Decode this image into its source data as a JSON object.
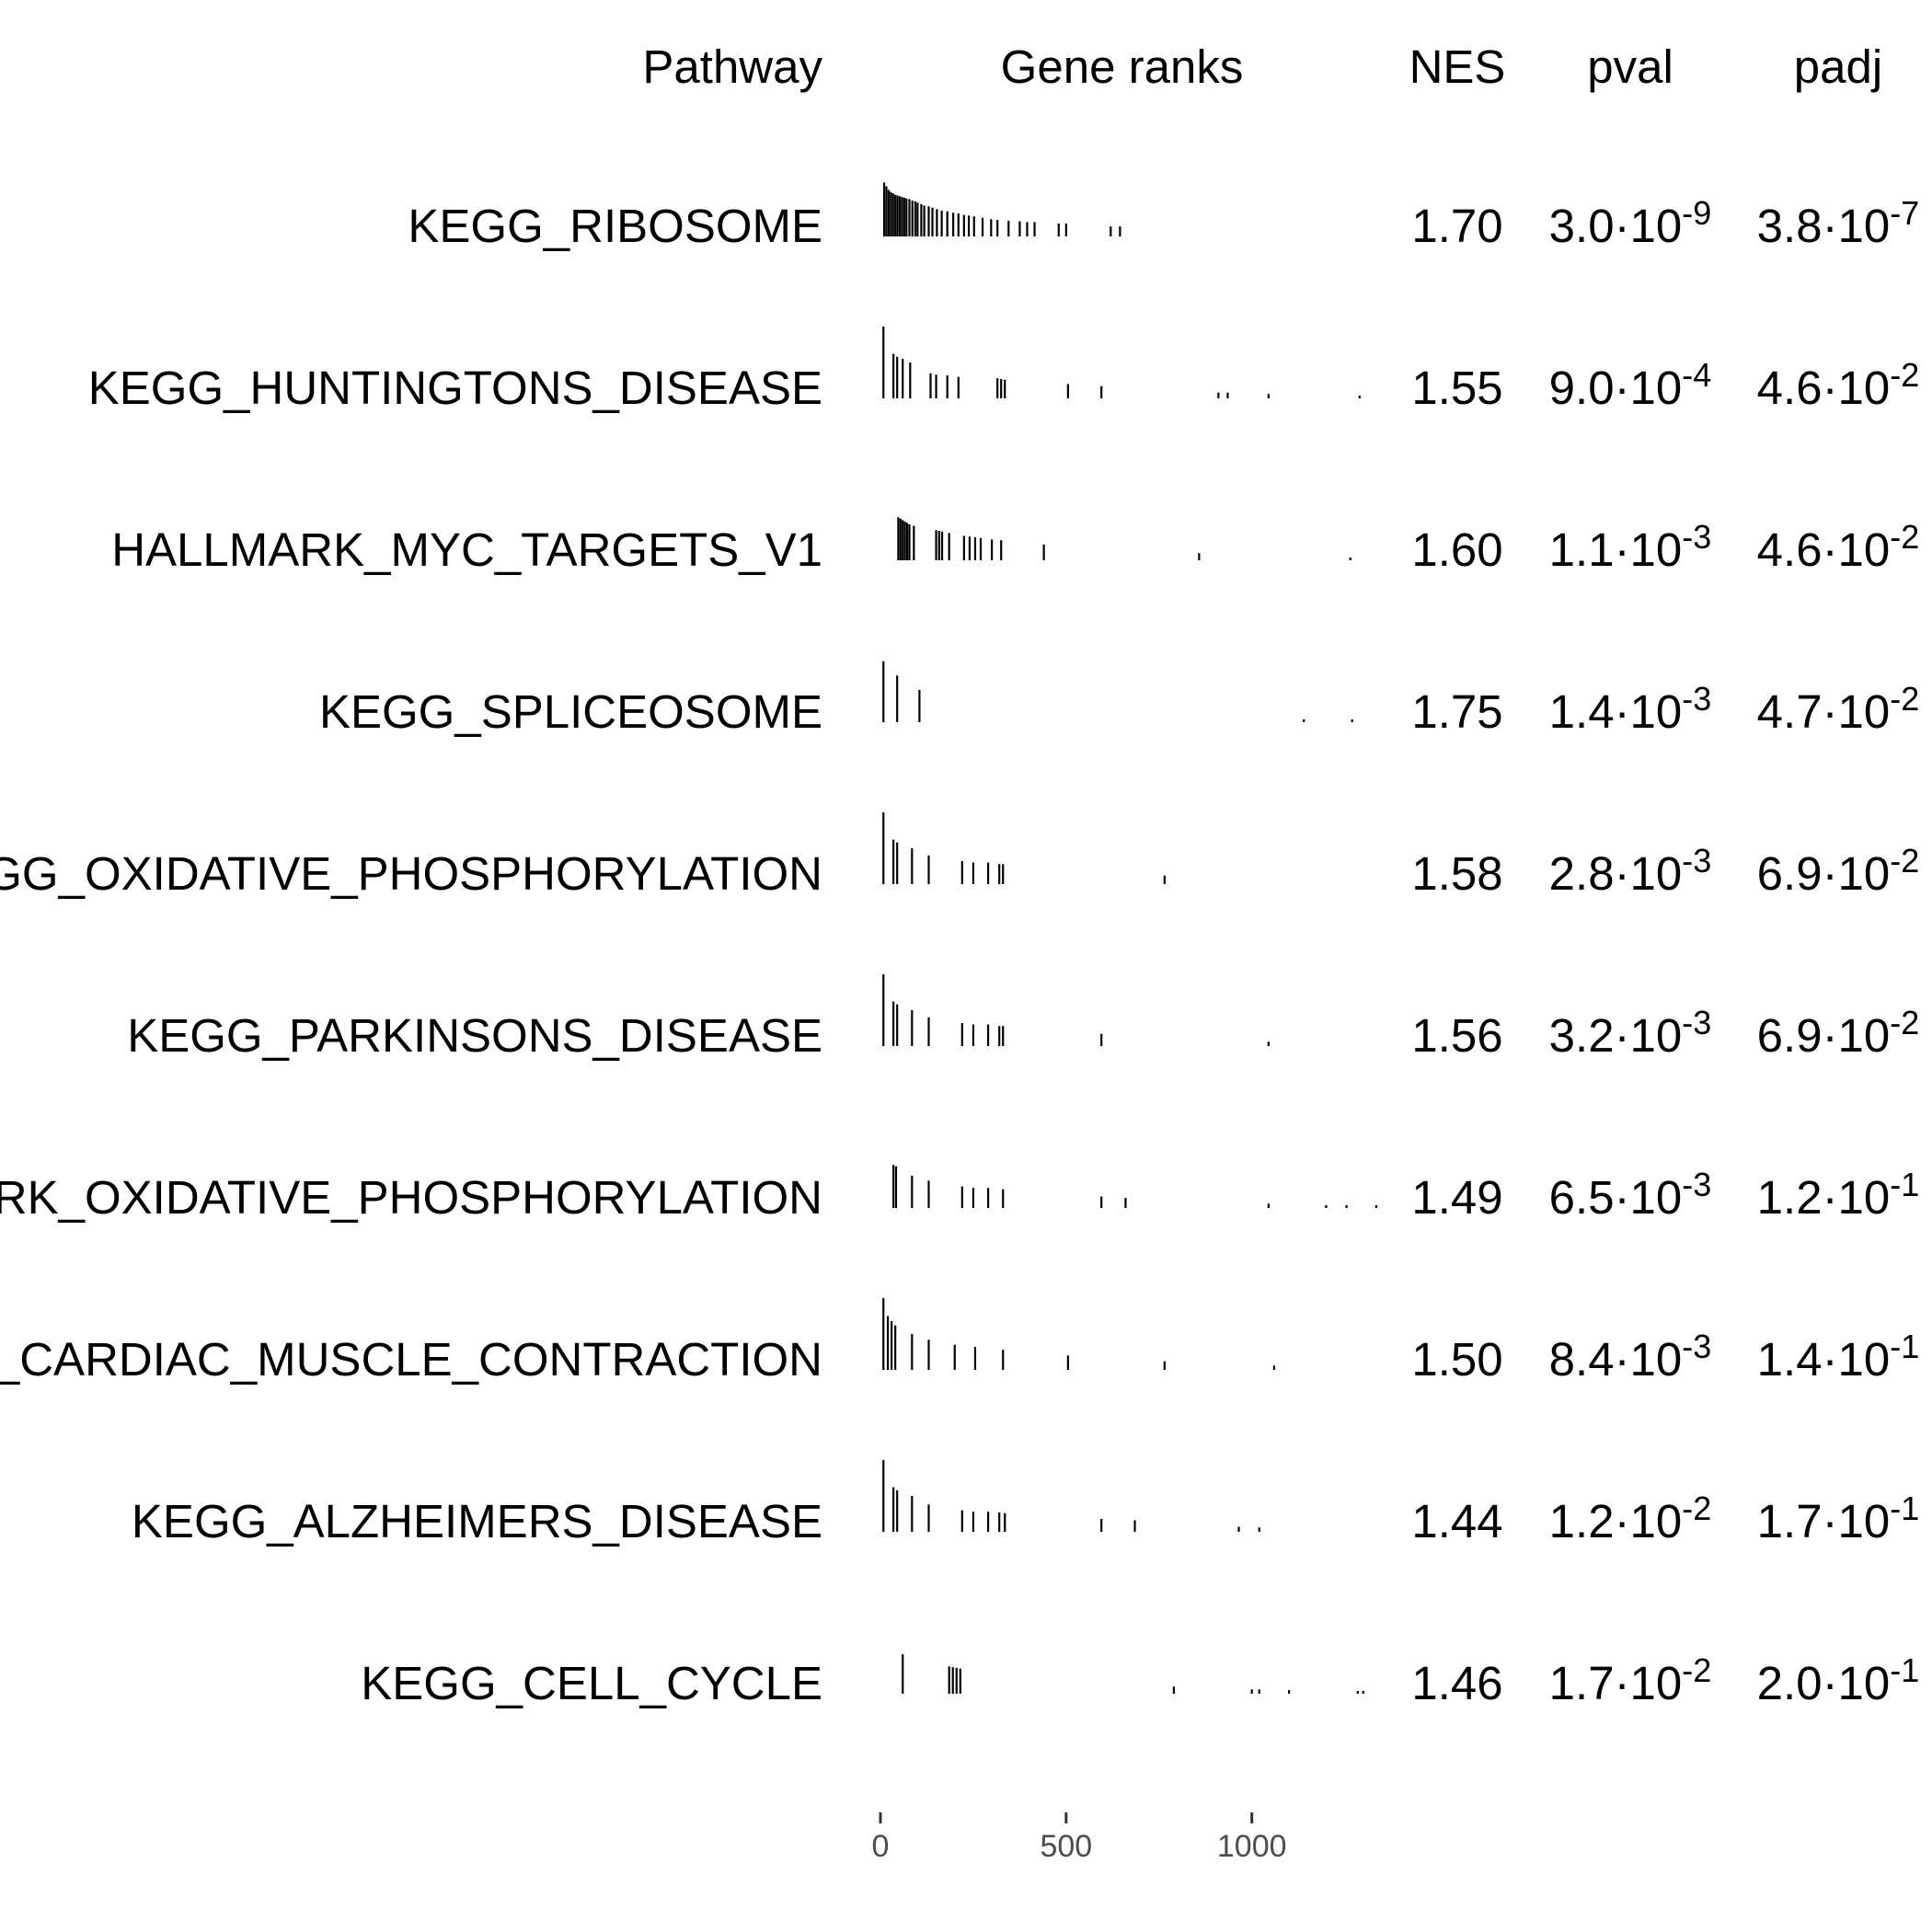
{
  "chart_data": {
    "type": "table",
    "columns": [
      "Pathway",
      "Gene ranks",
      "NES",
      "pval",
      "padj"
    ],
    "x_axis": {
      "ticks": [
        0,
        500,
        1000
      ],
      "range": [
        0,
        1350
      ]
    },
    "rows": [
      {
        "pathway": "KEGG_RIBOSOME",
        "nes": "1.70",
        "pval": {
          "mantissa": "3.0",
          "exponent": "-9"
        },
        "padj": {
          "mantissa": "3.8",
          "exponent": "-7"
        },
        "ranks": [
          [
            10,
            0.75
          ],
          [
            16,
            0.7
          ],
          [
            22,
            0.65
          ],
          [
            28,
            0.62
          ],
          [
            34,
            0.6
          ],
          [
            40,
            0.58
          ],
          [
            46,
            0.57
          ],
          [
            52,
            0.56
          ],
          [
            58,
            0.55
          ],
          [
            64,
            0.54
          ],
          [
            70,
            0.53
          ],
          [
            78,
            0.52
          ],
          [
            86,
            0.5
          ],
          [
            94,
            0.49
          ],
          [
            100,
            0.47
          ],
          [
            110,
            0.45
          ],
          [
            118,
            0.43
          ],
          [
            130,
            0.42
          ],
          [
            140,
            0.4
          ],
          [
            152,
            0.38
          ],
          [
            165,
            0.36
          ],
          [
            180,
            0.35
          ],
          [
            196,
            0.33
          ],
          [
            210,
            0.32
          ],
          [
            225,
            0.3
          ],
          [
            238,
            0.29
          ],
          [
            252,
            0.28
          ],
          [
            275,
            0.26
          ],
          [
            298,
            0.24
          ],
          [
            315,
            0.23
          ],
          [
            345,
            0.22
          ],
          [
            375,
            0.21
          ],
          [
            395,
            0.2
          ],
          [
            415,
            0.2
          ],
          [
            480,
            0.18
          ],
          [
            500,
            0.18
          ],
          [
            620,
            0.14
          ],
          [
            645,
            0.14
          ]
        ]
      },
      {
        "pathway": "KEGG_HUNTINGTONS_DISEASE",
        "nes": "1.55",
        "pval": {
          "mantissa": "9.0",
          "exponent": "-4"
        },
        "padj": {
          "mantissa": "4.6",
          "exponent": "-2"
        },
        "ranks": [
          [
            8,
            1.0
          ],
          [
            35,
            0.62
          ],
          [
            45,
            0.58
          ],
          [
            60,
            0.55
          ],
          [
            80,
            0.5
          ],
          [
            135,
            0.35
          ],
          [
            150,
            0.33
          ],
          [
            180,
            0.32
          ],
          [
            210,
            0.3
          ],
          [
            315,
            0.28
          ],
          [
            325,
            0.27
          ],
          [
            335,
            0.26
          ],
          [
            505,
            0.2
          ],
          [
            595,
            0.17
          ],
          [
            910,
            0.08
          ],
          [
            935,
            0.08
          ],
          [
            1045,
            0.06
          ],
          [
            1290,
            0.02
          ]
        ]
      },
      {
        "pathway": "HALLMARK_MYC_TARGETS_V1",
        "nes": "1.60",
        "pval": {
          "mantissa": "1.1",
          "exponent": "-3"
        },
        "padj": {
          "mantissa": "4.6",
          "exponent": "-2"
        },
        "ranks": [
          [
            48,
            0.6
          ],
          [
            54,
            0.58
          ],
          [
            60,
            0.56
          ],
          [
            66,
            0.54
          ],
          [
            72,
            0.52
          ],
          [
            78,
            0.5
          ],
          [
            90,
            0.48
          ],
          [
            150,
            0.42
          ],
          [
            158,
            0.41
          ],
          [
            166,
            0.4
          ],
          [
            185,
            0.38
          ],
          [
            225,
            0.34
          ],
          [
            240,
            0.33
          ],
          [
            255,
            0.32
          ],
          [
            270,
            0.31
          ],
          [
            300,
            0.29
          ],
          [
            325,
            0.28
          ],
          [
            440,
            0.22
          ],
          [
            858,
            0.1
          ],
          [
            1265,
            0.02
          ]
        ]
      },
      {
        "pathway": "KEGG_SPLICEOSOME",
        "nes": "1.75",
        "pval": {
          "mantissa": "1.4",
          "exponent": "-3"
        },
        "padj": {
          "mantissa": "4.7",
          "exponent": "-2"
        },
        "ranks": [
          [
            8,
            0.85
          ],
          [
            45,
            0.65
          ],
          [
            105,
            0.45
          ],
          [
            1140,
            0.04
          ],
          [
            1270,
            0.02
          ]
        ]
      },
      {
        "pathway": "KEGG_OXIDATIVE_PHOSPHORYLATION",
        "nes": "1.58",
        "pval": {
          "mantissa": "2.8",
          "exponent": "-3"
        },
        "padj": {
          "mantissa": "6.9",
          "exponent": "-2"
        },
        "ranks": [
          [
            8,
            1.0
          ],
          [
            35,
            0.62
          ],
          [
            45,
            0.58
          ],
          [
            85,
            0.5
          ],
          [
            130,
            0.4
          ],
          [
            220,
            0.32
          ],
          [
            250,
            0.3
          ],
          [
            290,
            0.3
          ],
          [
            320,
            0.28
          ],
          [
            330,
            0.28
          ],
          [
            765,
            0.12
          ]
        ]
      },
      {
        "pathway": "KEGG_PARKINSONS_DISEASE",
        "nes": "1.56",
        "pval": {
          "mantissa": "3.2",
          "exponent": "-3"
        },
        "padj": {
          "mantissa": "6.9",
          "exponent": "-2"
        },
        "ranks": [
          [
            8,
            1.0
          ],
          [
            35,
            0.62
          ],
          [
            45,
            0.58
          ],
          [
            85,
            0.5
          ],
          [
            130,
            0.4
          ],
          [
            220,
            0.32
          ],
          [
            250,
            0.3
          ],
          [
            290,
            0.3
          ],
          [
            320,
            0.28
          ],
          [
            330,
            0.28
          ],
          [
            595,
            0.17
          ],
          [
            1045,
            0.06
          ]
        ]
      },
      {
        "pathway": "HALLMARK_OXIDATIVE_PHOSPHORYLATION",
        "nes": "1.49",
        "pval": {
          "mantissa": "6.5",
          "exponent": "-3"
        },
        "padj": {
          "mantissa": "1.2",
          "exponent": "-1"
        },
        "ranks": [
          [
            35,
            0.6
          ],
          [
            42,
            0.58
          ],
          [
            85,
            0.45
          ],
          [
            130,
            0.38
          ],
          [
            220,
            0.3
          ],
          [
            250,
            0.28
          ],
          [
            290,
            0.28
          ],
          [
            330,
            0.26
          ],
          [
            595,
            0.16
          ],
          [
            660,
            0.14
          ],
          [
            1045,
            0.06
          ],
          [
            1200,
            0.03
          ],
          [
            1255,
            0.02
          ],
          [
            1335,
            0.02
          ]
        ]
      },
      {
        "pathway": "KEGG_CARDIAC_MUSCLE_CONTRACTION",
        "nes": "1.50",
        "pval": {
          "mantissa": "8.4",
          "exponent": "-3"
        },
        "padj": {
          "mantissa": "1.4",
          "exponent": "-1"
        },
        "ranks": [
          [
            8,
            1.0
          ],
          [
            20,
            0.75
          ],
          [
            30,
            0.68
          ],
          [
            40,
            0.62
          ],
          [
            85,
            0.5
          ],
          [
            130,
            0.42
          ],
          [
            200,
            0.35
          ],
          [
            255,
            0.32
          ],
          [
            330,
            0.28
          ],
          [
            505,
            0.2
          ],
          [
            765,
            0.12
          ],
          [
            1060,
            0.06
          ]
        ]
      },
      {
        "pathway": "KEGG_ALZHEIMERS_DISEASE",
        "nes": "1.44",
        "pval": {
          "mantissa": "1.2",
          "exponent": "-2"
        },
        "padj": {
          "mantissa": "1.7",
          "exponent": "-1"
        },
        "ranks": [
          [
            8,
            1.0
          ],
          [
            35,
            0.62
          ],
          [
            45,
            0.58
          ],
          [
            85,
            0.5
          ],
          [
            130,
            0.38
          ],
          [
            220,
            0.3
          ],
          [
            250,
            0.28
          ],
          [
            290,
            0.28
          ],
          [
            320,
            0.27
          ],
          [
            335,
            0.26
          ],
          [
            595,
            0.18
          ],
          [
            685,
            0.16
          ],
          [
            965,
            0.07
          ],
          [
            1020,
            0.06
          ]
        ]
      },
      {
        "pathway": "KEGG_CELL_CYCLE",
        "nes": "1.46",
        "pval": {
          "mantissa": "1.7",
          "exponent": "-2"
        },
        "padj": {
          "mantissa": "2.0",
          "exponent": "-1"
        },
        "ranks": [
          [
            60,
            0.55
          ],
          [
            185,
            0.38
          ],
          [
            195,
            0.37
          ],
          [
            205,
            0.36
          ],
          [
            215,
            0.35
          ],
          [
            790,
            0.1
          ],
          [
            1000,
            0.06
          ],
          [
            1020,
            0.06
          ],
          [
            1100,
            0.05
          ],
          [
            1285,
            0.02
          ],
          [
            1300,
            0.02
          ]
        ]
      }
    ]
  }
}
